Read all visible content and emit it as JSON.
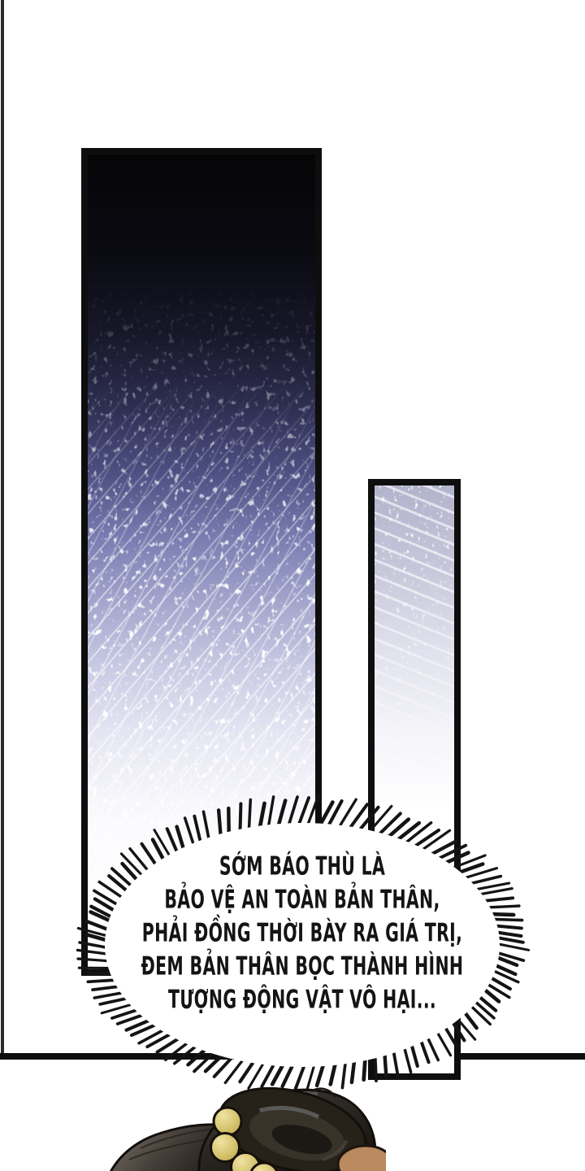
{
  "speech_bubble": {
    "lines": [
      "SỚM BÁO THÙ LÀ",
      "BẢO VỆ AN TOÀN BẢN THÂN,",
      "PHẢI ĐỒNG THỜI BÀY RA GIÁ TRỊ,",
      "ĐEM BẢN THÂN BỌC THÀNH HÌNH",
      "TƯỢNG ĐỘNG VẬT VÔ HẠI..."
    ]
  },
  "colors": {
    "ink": "#141414",
    "panel_border": "#0e0e0e",
    "night_top": "#050507",
    "night_mid": "#797cb0",
    "pale_top": "#b2b3cc",
    "bubble_fill": "#ffffff",
    "bead_gold": "#d2c06a",
    "hair_dark": "#221e1a",
    "skin": "#b9895f"
  }
}
